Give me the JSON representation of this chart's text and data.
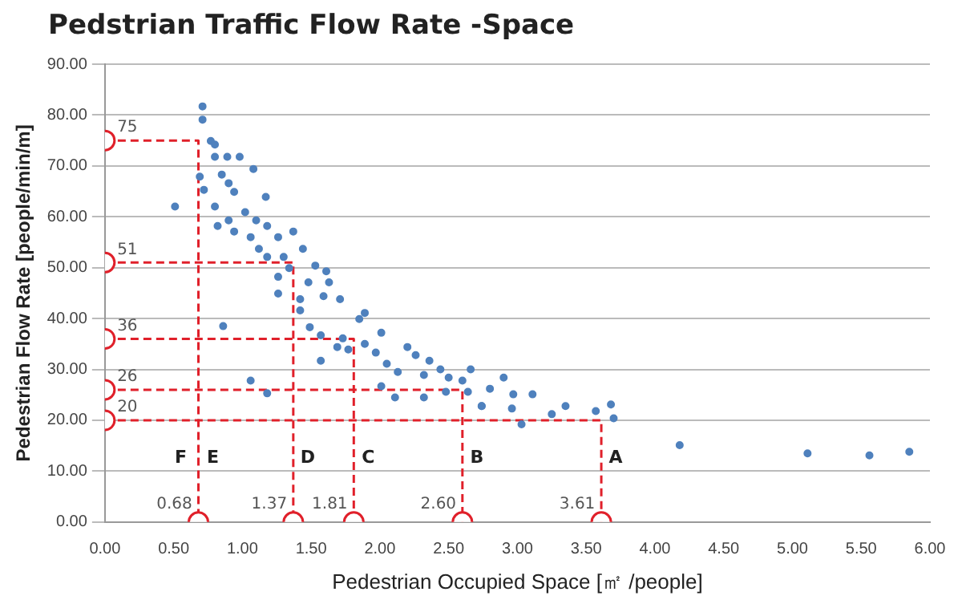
{
  "chart_data": {
    "type": "scatter",
    "title": "Pedstrian Traffic Flow Rate -Space",
    "xlabel": "Pedestrian Occupied Space [㎡ /people]",
    "ylabel": "Pedestrian Flow Rate [people/min/m]",
    "xlim": [
      0,
      6
    ],
    "ylim": [
      0,
      90
    ],
    "xticks": [
      {
        "value": 0,
        "label": "0.00"
      },
      {
        "value": 0.5,
        "label": "0.50"
      },
      {
        "value": 1,
        "label": "1.00"
      },
      {
        "value": 1.5,
        "label": "1.50"
      },
      {
        "value": 2,
        "label": "2.00"
      },
      {
        "value": 2.5,
        "label": "2.50"
      },
      {
        "value": 3,
        "label": "3.00"
      },
      {
        "value": 3.5,
        "label": "3.50"
      },
      {
        "value": 4,
        "label": "4.00"
      },
      {
        "value": 4.5,
        "label": "4.50"
      },
      {
        "value": 5,
        "label": "5.00"
      },
      {
        "value": 5.5,
        "label": "5.50"
      },
      {
        "value": 6,
        "label": "6.00"
      }
    ],
    "yticks": [
      {
        "value": 0,
        "label": "0.00"
      },
      {
        "value": 10,
        "label": "10.00"
      },
      {
        "value": 20,
        "label": "20.00"
      },
      {
        "value": 30,
        "label": "30.00"
      },
      {
        "value": 40,
        "label": "40.00"
      },
      {
        "value": 50,
        "label": "50.00"
      },
      {
        "value": 60,
        "label": "60.00"
      },
      {
        "value": 70,
        "label": "70.00"
      },
      {
        "value": 80,
        "label": "80.00"
      },
      {
        "value": 90,
        "label": "90.00"
      }
    ],
    "grid": "y",
    "legend": false,
    "series": [
      {
        "color": "#4f81bd",
        "marker": "circle",
        "x": [
          0.71,
          0.71,
          0.77,
          0.8,
          0.8,
          0.89,
          0.98,
          1.08,
          0.69,
          0.51,
          0.85,
          0.9,
          0.94,
          0.72,
          0.8,
          1.17,
          1.02,
          1.1,
          0.9,
          0.82,
          1.18,
          1.26,
          1.37,
          1.06,
          0.94,
          1.44,
          1.12,
          1.18,
          1.3,
          1.26,
          1.34,
          1.53,
          1.48,
          1.26,
          1.42,
          1.61,
          1.63,
          1.59,
          1.71,
          1.42,
          1.89,
          1.85,
          0.86,
          1.49,
          2.01,
          1.57,
          1.69,
          1.77,
          1.57,
          1.97,
          2.05,
          2.13,
          2.2,
          2.26,
          2.36,
          2.44,
          2.32,
          2.5,
          1.06,
          1.18,
          2.01,
          2.11,
          2.32,
          2.48,
          2.64,
          2.74,
          1.73,
          1.89,
          2.66,
          2.6,
          2.8,
          2.9,
          2.74,
          2.97,
          3.11,
          2.96,
          3.25,
          3.35,
          3.03,
          3.57,
          3.68,
          3.7,
          4.18,
          5.11,
          5.56,
          5.85
        ],
        "values": [
          81.7,
          79.1,
          74.9,
          74.2,
          71.8,
          71.8,
          71.8,
          69.4,
          67.9,
          62.0,
          68.3,
          66.6,
          64.9,
          65.3,
          62.0,
          63.9,
          60.9,
          59.3,
          59.3,
          58.2,
          58.2,
          56.0,
          57.1,
          56.0,
          57.1,
          53.7,
          53.7,
          52.1,
          52.1,
          48.2,
          49.9,
          50.4,
          47.1,
          44.9,
          43.8,
          49.3,
          47.1,
          44.4,
          43.8,
          41.6,
          41.1,
          39.9,
          38.5,
          38.3,
          37.2,
          36.7,
          34.4,
          33.9,
          31.7,
          33.3,
          31.1,
          29.5,
          34.4,
          32.8,
          31.7,
          30.0,
          28.9,
          28.4,
          27.8,
          25.3,
          26.7,
          24.5,
          24.5,
          25.6,
          25.6,
          22.8,
          36.1,
          35.0,
          30.0,
          27.8,
          26.2,
          28.4,
          22.8,
          25.1,
          25.1,
          22.3,
          21.2,
          22.8,
          19.2,
          21.8,
          23.1,
          20.4,
          15.1,
          13.5,
          13.1,
          13.8
        ]
      },
      {
        "type": "line",
        "color": "#e0202a",
        "line_style": "dashed",
        "x": [
          0,
          0.68,
          0.68
        ],
        "values": [
          75,
          75,
          0
        ]
      },
      {
        "type": "line",
        "color": "#e0202a",
        "line_style": "dashed",
        "x": [
          0,
          1.37,
          1.37
        ],
        "values": [
          51,
          51,
          0
        ]
      },
      {
        "type": "line",
        "color": "#e0202a",
        "line_style": "dashed",
        "x": [
          0,
          1.81,
          1.81
        ],
        "values": [
          36,
          36,
          0
        ]
      },
      {
        "type": "line",
        "color": "#e0202a",
        "line_style": "dashed",
        "x": [
          0,
          2.6,
          2.6
        ],
        "values": [
          26,
          26,
          0
        ]
      },
      {
        "type": "line",
        "color": "#e0202a",
        "line_style": "dashed",
        "x": [
          0,
          3.61,
          3.61
        ],
        "values": [
          20,
          20,
          0
        ]
      }
    ],
    "annotations": [
      {
        "text": "75",
        "x": 0,
        "y": 75
      },
      {
        "text": "51",
        "x": 0,
        "y": 51
      },
      {
        "text": "36",
        "x": 0,
        "y": 36
      },
      {
        "text": "26",
        "x": 0,
        "y": 26
      },
      {
        "text": "20",
        "x": 0,
        "y": 20
      },
      {
        "text": "0.68",
        "x": 0.68,
        "y": 0
      },
      {
        "text": "1.37",
        "x": 1.37,
        "y": 0
      },
      {
        "text": "1.81",
        "x": 1.81,
        "y": 0
      },
      {
        "text": "2.60",
        "x": 2.6,
        "y": 0
      },
      {
        "text": "3.61",
        "x": 3.61,
        "y": 0
      },
      "F",
      {
        "text": "E",
        "x": 0.68,
        "y": 12.6
      },
      {
        "text": "D",
        "x": 1.37,
        "y": 12.6
      },
      {
        "text": "C",
        "x": 1.81,
        "y": 12.6
      },
      {
        "text": "B",
        "x": 2.6,
        "y": 12.6
      },
      {
        "text": "A",
        "x": 3.61,
        "y": 12.6
      }
    ]
  }
}
